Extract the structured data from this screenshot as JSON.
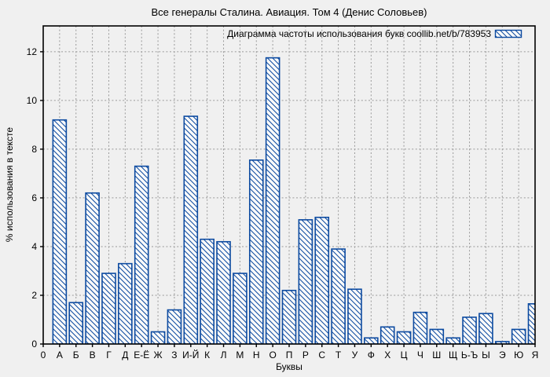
{
  "title": "Все генералы Сталина. Авиация. Том 4 (Денис Соловьев)",
  "chart_data": {
    "type": "bar",
    "title": "Все генералы Сталина. Авиация. Том 4 (Денис Соловьев)",
    "legend_label": "Диаграмма частоты использования букв coollib.net/b/783953",
    "legend_position": "top-right",
    "xlabel": "Буквы",
    "ylabel": "% использования в тексте",
    "origin_label": "0",
    "categories": [
      "А",
      "Б",
      "В",
      "Г",
      "Д",
      "Е-Ё",
      "Ж",
      "З",
      "И-Й",
      "К",
      "Л",
      "М",
      "Н",
      "О",
      "П",
      "Р",
      "С",
      "Т",
      "У",
      "Ф",
      "Х",
      "Ц",
      "Ч",
      "Ш",
      "Щ",
      "Ь-Ъ",
      "Ы",
      "Э",
      "Ю",
      "Я"
    ],
    "values": [
      9.2,
      1.7,
      6.2,
      2.9,
      3.3,
      7.3,
      0.5,
      1.4,
      9.35,
      4.3,
      4.2,
      2.9,
      7.55,
      11.75,
      2.2,
      5.1,
      5.2,
      3.9,
      2.25,
      0.25,
      0.7,
      0.5,
      1.3,
      0.6,
      0.25,
      1.1,
      1.25,
      0.1,
      0.6,
      1.65
    ],
    "yticks": [
      0,
      2,
      4,
      6,
      8,
      10,
      12
    ],
    "ylim": [
      0,
      13.06
    ],
    "grid": true,
    "hatch": "diagonal-backslash",
    "bar_border_color": "#0c4aa0",
    "bar_fill_color": "#fafafa",
    "grid_color": "#999999",
    "background_color": "#f0f0f0"
  }
}
